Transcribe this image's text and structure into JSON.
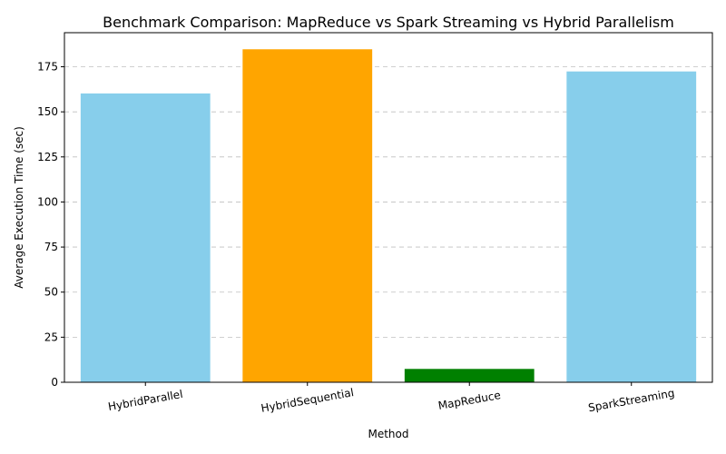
{
  "chart_data": {
    "type": "bar",
    "title": "Benchmark Comparison: MapReduce vs Spark Streaming vs Hybrid Parallelism",
    "xlabel": "Method",
    "ylabel": "Average Execution Time (sec)",
    "categories": [
      "HybridParallel",
      "HybridSequential",
      "MapReduce",
      "SparkStreaming"
    ],
    "values": [
      160.2,
      184.7,
      7.4,
      172.4
    ],
    "bar_colors": [
      "#87ceeb",
      "#ffa500",
      "#008000",
      "#87ceeb"
    ],
    "ylim": [
      0,
      193.9
    ],
    "yticks": [
      0,
      25,
      50,
      75,
      100,
      125,
      150,
      175
    ],
    "grid": "y-axis dashed",
    "legend": "none",
    "xtick_rotation_deg": 10
  }
}
